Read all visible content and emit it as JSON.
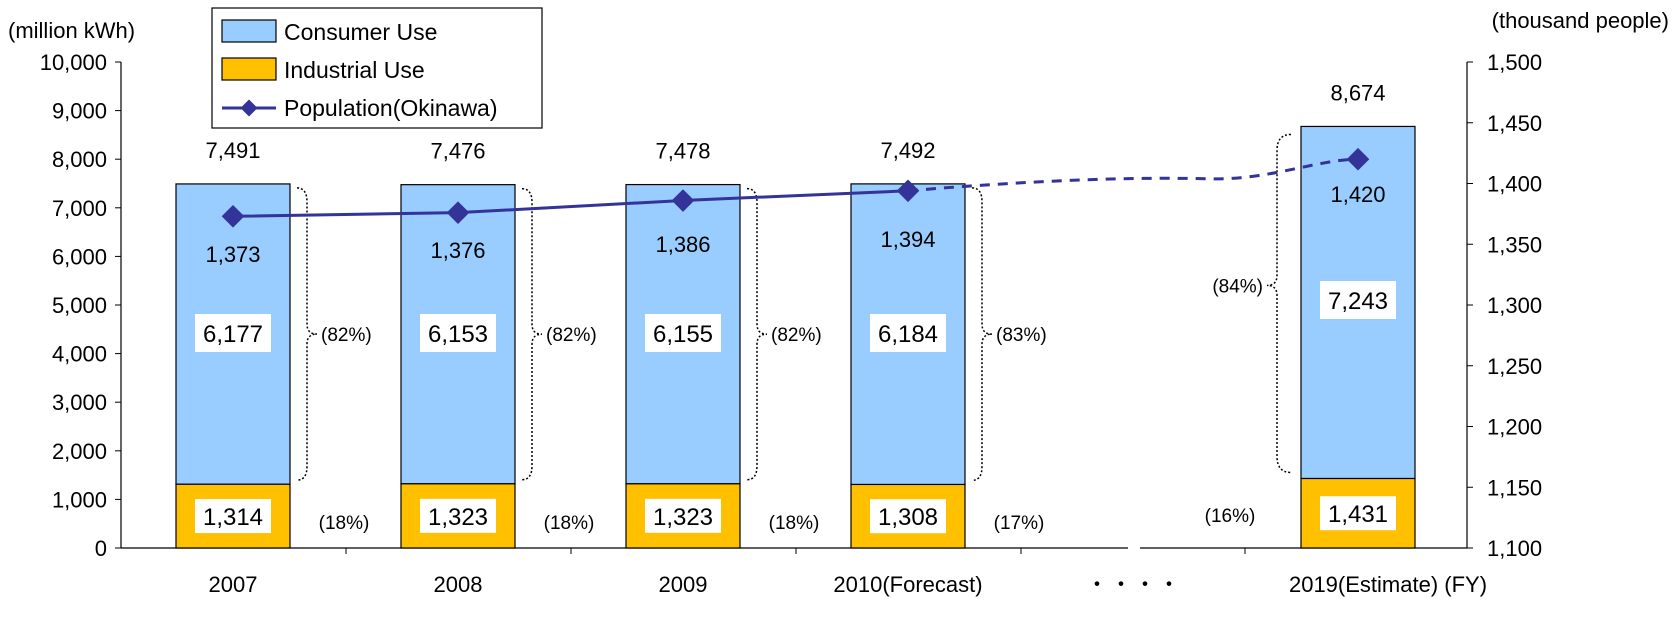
{
  "chart_data": {
    "type": "bar",
    "stacked": true,
    "categories": [
      "2007",
      "2008",
      "2009",
      "2010(Forecast)",
      "2019(Estimate) (FY)"
    ],
    "gap_marker": "・・・・",
    "series": [
      {
        "name": "Industrial Use",
        "values": [
          1314,
          1323,
          1323,
          1308,
          1431
        ],
        "color": "#FFC000",
        "share_labels": [
          "(18%)",
          "(18%)",
          "(18%)",
          "(17%)",
          "(16%)"
        ]
      },
      {
        "name": "Consumer Use",
        "values": [
          6177,
          6153,
          6155,
          6184,
          7243
        ],
        "color": "#99CCFF",
        "share_labels": [
          "(82%)",
          "(82%)",
          "(82%)",
          "(83%)",
          "(84%)"
        ]
      }
    ],
    "totals": [
      7491,
      7476,
      7478,
      7492,
      8674
    ],
    "line_series": {
      "name": "Population(Okinawa)",
      "axis": "right",
      "color": "#333399",
      "values": [
        1373,
        1376,
        1386,
        1394,
        1420
      ],
      "projection": "dashed"
    },
    "y_left": {
      "label": "(million kWh)",
      "range": [
        0,
        10000
      ],
      "step": 1000,
      "tick_labels": [
        "0",
        "1,000",
        "2,000",
        "3,000",
        "4,000",
        "5,000",
        "6,000",
        "7,000",
        "8,000",
        "9,000",
        "10,000"
      ]
    },
    "y_right": {
      "label": "(thousand people)",
      "range": [
        1100,
        1500
      ],
      "step": 50,
      "tick_labels": [
        "1,100",
        "1,150",
        "1,200",
        "1,250",
        "1,300",
        "1,350",
        "1,400",
        "1,450",
        "1,500"
      ]
    },
    "legend": {
      "position": "top-left",
      "entries": [
        {
          "label": "Consumer Use",
          "kind": "box",
          "color": "#99CCFF"
        },
        {
          "label": "Industrial Use",
          "kind": "box",
          "color": "#FFC000"
        },
        {
          "label": "Population(Okinawa)",
          "kind": "line",
          "color": "#333399"
        }
      ]
    },
    "grid": false
  }
}
